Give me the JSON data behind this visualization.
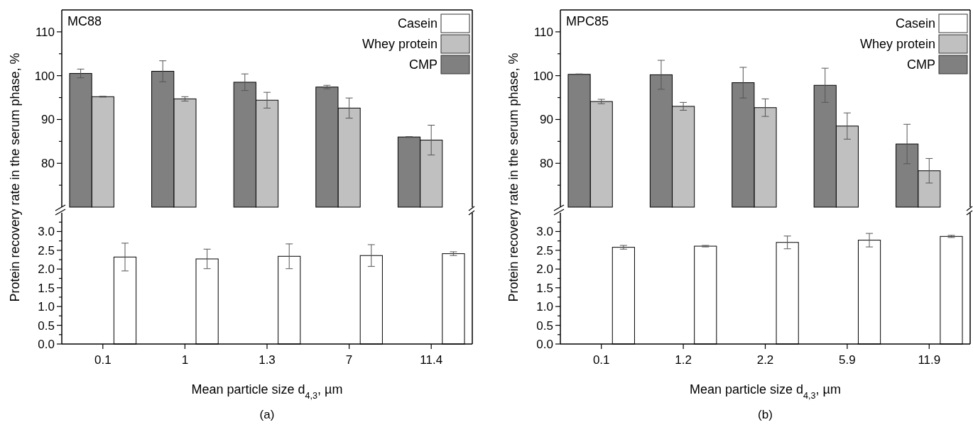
{
  "chart_data": [
    {
      "type": "bar",
      "title": "MC88",
      "categories": [
        null,
        null,
        null,
        null,
        null
      ],
      "legend": "top right",
      "tick_labels": "y",
      "ylim": [
        70,
        115
      ],
      "yticks": [
        {
          "value": 75,
          "label": null
        },
        80,
        {
          "value": 85,
          "label": null
        },
        90,
        {
          "value": 95,
          "label": null
        },
        100,
        {
          "value": 105,
          "label": null
        },
        110
      ],
      "series": [
        {
          "name": "Casein",
          "color": "#ffffff",
          "values": [
            null,
            null,
            null,
            null,
            null
          ]
        },
        {
          "name": "Whey protein",
          "color": "#c0c0c0",
          "values": [
            95.2,
            94.7,
            94.4,
            92.6,
            85.3
          ],
          "errors": [
            0.1,
            0.5,
            1.8,
            2.3,
            3.4
          ]
        },
        {
          "name": "CMP",
          "color": "#808080",
          "values": [
            100.5,
            101.0,
            98.5,
            97.4,
            86.0
          ],
          "errors": [
            1.0,
            2.4,
            1.9,
            0.4,
            0.1
          ]
        }
      ]
    },
    {
      "type": "bar",
      "categories": [
        "0.1",
        "1",
        "1.3",
        "7",
        "11.4"
      ],
      "xlabel": "Mean particle size d$_{4,3}$, µm",
      "ylabel": "Protein recovery rate in the serum phase, %",
      "annotations": [
        "(a)"
      ],
      "ylim": [
        0,
        3.5
      ],
      "yticks": [
        {
          "value": 0,
          "label": "0.0"
        },
        {
          "value": 0.25,
          "label": null
        },
        {
          "value": 0.5,
          "label": "0.5"
        },
        {
          "value": 0.75,
          "label": null
        },
        {
          "value": 1,
          "label": "1.0"
        },
        {
          "value": 1.25,
          "label": null
        },
        {
          "value": 1.5,
          "label": "1.5"
        },
        {
          "value": 1.75,
          "label": null
        },
        {
          "value": 2,
          "label": "2.0"
        },
        {
          "value": 2.25,
          "label": null
        },
        {
          "value": 2.5,
          "label": "2.5"
        },
        {
          "value": 2.75,
          "label": null
        },
        {
          "value": 3,
          "label": "3.0"
        },
        {
          "value": 3.25,
          "label": null
        }
      ],
      "series": [
        {
          "color": "#ffffff",
          "values": [
            2.32,
            2.27,
            2.34,
            2.36,
            2.41
          ],
          "errors": [
            0.37,
            0.26,
            0.33,
            0.29,
            0.05
          ]
        }
      ]
    },
    {
      "type": "bar",
      "title": "MPC85",
      "categories": [
        null,
        null,
        null,
        null,
        null
      ],
      "legend": "top right",
      "tick_labels": "y",
      "ylim": [
        70,
        115
      ],
      "yticks": [
        {
          "value": 75,
          "label": null
        },
        80,
        {
          "value": 85,
          "label": null
        },
        90,
        {
          "value": 95,
          "label": null
        },
        100,
        {
          "value": 105,
          "label": null
        },
        110
      ],
      "series": [
        {
          "name": "Casein",
          "color": "#ffffff",
          "values": [
            null,
            null,
            null,
            null,
            null
          ]
        },
        {
          "name": "Whey protein",
          "color": "#c0c0c0",
          "values": [
            94.1,
            93.0,
            92.7,
            88.5,
            78.3
          ],
          "errors": [
            0.5,
            0.9,
            2.0,
            3.0,
            2.8
          ]
        },
        {
          "name": "CMP",
          "color": "#808080",
          "values": [
            100.3,
            100.2,
            98.4,
            97.8,
            84.4
          ],
          "errors": [
            0.1,
            3.3,
            3.5,
            3.9,
            4.5
          ]
        }
      ]
    },
    {
      "type": "bar",
      "categories": [
        "0.1",
        "1.2",
        "2.2",
        "5.9",
        "11.9"
      ],
      "xlabel": "Mean particle size d$_{4,3}$, µm",
      "ylabel": "Protein recovery rate in the serum phase, %",
      "annotations": [
        "(b)"
      ],
      "ylim": [
        0,
        3.5
      ],
      "yticks": [
        {
          "value": 0,
          "label": "0.0"
        },
        {
          "value": 0.25,
          "label": null
        },
        {
          "value": 0.5,
          "label": "0.5"
        },
        {
          "value": 0.75,
          "label": null
        },
        {
          "value": 1,
          "label": "1.0"
        },
        {
          "value": 1.25,
          "label": null
        },
        {
          "value": 1.5,
          "label": "1.5"
        },
        {
          "value": 1.75,
          "label": null
        },
        {
          "value": 2,
          "label": "2.0"
        },
        {
          "value": 2.25,
          "label": null
        },
        {
          "value": 2.5,
          "label": "2.5"
        },
        {
          "value": 2.75,
          "label": null
        },
        {
          "value": 3,
          "label": "3.0"
        },
        {
          "value": 3.25,
          "label": null
        }
      ],
      "series": [
        {
          "color": "#ffffff",
          "values": [
            2.58,
            2.61,
            2.71,
            2.77,
            2.87
          ],
          "errors": [
            0.05,
            0.02,
            0.17,
            0.18,
            0.03
          ]
        }
      ]
    }
  ]
}
